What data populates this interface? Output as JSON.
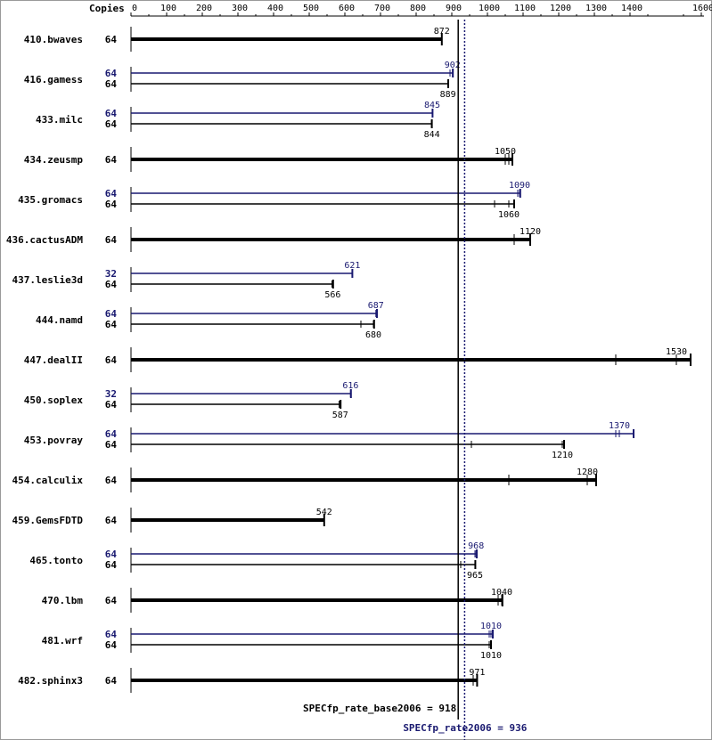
{
  "chart_data": {
    "type": "bar",
    "header": "Copies",
    "axis": {
      "ticks": [
        0,
        100,
        200,
        300,
        400,
        500,
        600,
        700,
        800,
        900,
        1000,
        1100,
        1200,
        1300,
        1400,
        1600
      ],
      "xlim": [
        0,
        1600
      ]
    },
    "colors": {
      "base": "#000000",
      "peak": "#191970"
    },
    "benchmarks": [
      {
        "name": "410.bwaves",
        "base": {
          "copies": "64",
          "value": 872,
          "label": "872",
          "runs": [
            872,
            872,
            872
          ]
        }
      },
      {
        "name": "416.gamess",
        "peak": {
          "copies": "64",
          "value": 902,
          "label": "902",
          "runs": [
            895,
            902,
            903
          ]
        },
        "base": {
          "copies": "64",
          "value": 889,
          "label": "889",
          "runs": [
            889,
            889,
            890
          ]
        }
      },
      {
        "name": "433.milc",
        "peak": {
          "copies": "64",
          "value": 845,
          "label": "845",
          "runs": [
            845,
            845,
            846
          ]
        },
        "base": {
          "copies": "64",
          "value": 844,
          "label": "844",
          "runs": [
            843,
            844,
            844
          ]
        }
      },
      {
        "name": "434.zeusmp",
        "base": {
          "copies": "64",
          "value": 1050,
          "label": "1050",
          "runs": [
            1050,
            1060,
            1070
          ]
        }
      },
      {
        "name": "435.gromacs",
        "peak": {
          "copies": "64",
          "value": 1090,
          "label": "1090",
          "runs": [
            1085,
            1090,
            1092
          ]
        },
        "base": {
          "copies": "64",
          "value": 1060,
          "label": "1060",
          "runs": [
            1020,
            1060,
            1075
          ]
        }
      },
      {
        "name": "436.cactusADM",
        "base": {
          "copies": "64",
          "value": 1120,
          "label": "1120",
          "runs": [
            1075,
            1120,
            1120
          ]
        }
      },
      {
        "name": "437.leslie3d",
        "peak": {
          "copies": "32",
          "value": 621,
          "label": "621",
          "runs": [
            621,
            621,
            621
          ]
        },
        "base": {
          "copies": "64",
          "value": 566,
          "label": "566",
          "runs": [
            564,
            566,
            567
          ]
        }
      },
      {
        "name": "444.namd",
        "peak": {
          "copies": "64",
          "value": 687,
          "label": "687",
          "runs": [
            687,
            688,
            690
          ]
        },
        "base": {
          "copies": "64",
          "value": 680,
          "label": "680",
          "runs": [
            645,
            680,
            682
          ]
        }
      },
      {
        "name": "447.dealII",
        "base": {
          "copies": "64",
          "value": 1530,
          "label": "1530",
          "runs": [
            1360,
            1530,
            1570
          ]
        }
      },
      {
        "name": "450.soplex",
        "peak": {
          "copies": "32",
          "value": 616,
          "label": "616",
          "runs": [
            616,
            616,
            617
          ]
        },
        "base": {
          "copies": "64",
          "value": 587,
          "label": "587",
          "runs": [
            584,
            587,
            588
          ]
        }
      },
      {
        "name": "453.povray",
        "peak": {
          "copies": "64",
          "value": 1370,
          "label": "1370",
          "runs": [
            1360,
            1370,
            1410
          ]
        },
        "base": {
          "copies": "64",
          "value": 1210,
          "label": "1210",
          "runs": [
            955,
            1210,
            1215
          ]
        }
      },
      {
        "name": "454.calculix",
        "base": {
          "copies": "64",
          "value": 1280,
          "label": "1280",
          "runs": [
            1060,
            1280,
            1305
          ]
        }
      },
      {
        "name": "459.GemsFDTD",
        "base": {
          "copies": "64",
          "value": 542,
          "label": "542",
          "runs": [
            542,
            542,
            542
          ]
        }
      },
      {
        "name": "465.tonto",
        "peak": {
          "copies": "64",
          "value": 968,
          "label": "968",
          "runs": [
            965,
            968,
            970
          ]
        },
        "base": {
          "copies": "64",
          "value": 965,
          "label": "965",
          "runs": [
            925,
            965,
            966
          ]
        }
      },
      {
        "name": "470.lbm",
        "base": {
          "copies": "64",
          "value": 1040,
          "label": "1040",
          "runs": [
            1030,
            1040,
            1042
          ]
        }
      },
      {
        "name": "481.wrf",
        "peak": {
          "copies": "64",
          "value": 1010,
          "label": "1010",
          "runs": [
            1005,
            1010,
            1015
          ]
        },
        "base": {
          "copies": "64",
          "value": 1010,
          "label": "1010",
          "runs": [
            1005,
            1010,
            1010
          ]
        }
      },
      {
        "name": "482.sphinx3",
        "base": {
          "copies": "64",
          "value": 971,
          "label": "971",
          "runs": [
            960,
            971,
            971
          ]
        }
      }
    ],
    "summary": {
      "base": {
        "label": "SPECfp_rate_base2006 = 918",
        "value": 918
      },
      "peak": {
        "label": "SPECfp_rate2006 = 936",
        "value": 936
      }
    }
  }
}
